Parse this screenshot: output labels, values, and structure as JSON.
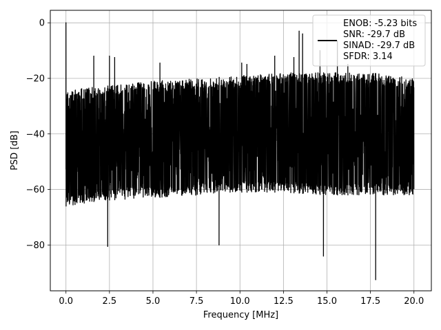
{
  "chart_data": {
    "type": "line",
    "title": "",
    "xlabel": "Frequency [MHz]",
    "ylabel": "PSD [dB]",
    "xlim": [
      -0.9,
      21.0
    ],
    "ylim": [
      -96.5,
      4.5
    ],
    "grid": true,
    "xticks": [
      0.0,
      2.5,
      5.0,
      7.5,
      10.0,
      12.5,
      15.0,
      17.5,
      20.0
    ],
    "xtick_labels": [
      "0.0",
      "2.5",
      "5.0",
      "7.5",
      "10.0",
      "12.5",
      "15.0",
      "17.5",
      "20.0"
    ],
    "yticks": [
      0,
      -20,
      -40,
      -60,
      -80
    ],
    "ytick_labels": [
      "0",
      "−20",
      "−40",
      "−60",
      "−80"
    ],
    "legend_position": "top-right",
    "series": [
      {
        "legend_lines": [
          "ENOB: -5.23 bits",
          "SNR: -29.7 dB",
          "SINAD: -29.7 dB",
          "SFDR: 3.14"
        ],
        "color": "#000000",
        "x_range": [
          0.0,
          20.0
        ],
        "description_of_values": "dense noise floor oscillating roughly between -65 and -22 dB with a peak at 0 MHz reaching 0 dB",
        "peaks": [
          {
            "x": 0.0,
            "y": 0.0
          },
          {
            "x": 1.6,
            "y": -12.0
          },
          {
            "x": 2.5,
            "y": -12.0
          },
          {
            "x": 2.8,
            "y": -12.5
          },
          {
            "x": 5.4,
            "y": -14.5
          },
          {
            "x": 10.1,
            "y": -14.5
          },
          {
            "x": 10.4,
            "y": -15.0
          },
          {
            "x": 12.0,
            "y": -12.0
          },
          {
            "x": 13.1,
            "y": -12.5
          },
          {
            "x": 13.4,
            "y": -3.0
          },
          {
            "x": 13.6,
            "y": -4.0
          },
          {
            "x": 14.6,
            "y": -10.0
          },
          {
            "x": 15.6,
            "y": -6.5
          },
          {
            "x": 16.2,
            "y": -15.0
          }
        ],
        "troughs": [
          {
            "x": 2.4,
            "y": -80.5
          },
          {
            "x": 8.8,
            "y": -80.0
          },
          {
            "x": 14.8,
            "y": -84.0
          },
          {
            "x": 17.8,
            "y": -92.5
          }
        ],
        "upper_envelope": [
          [
            0.0,
            -24
          ],
          [
            2.0,
            -23
          ],
          [
            5.0,
            -21
          ],
          [
            8.0,
            -20
          ],
          [
            10.0,
            -19
          ],
          [
            12.5,
            -18
          ],
          [
            15.0,
            -18
          ],
          [
            17.5,
            -18
          ],
          [
            20.0,
            -20
          ]
        ],
        "lower_envelope": [
          [
            0.0,
            -66
          ],
          [
            2.0,
            -64
          ],
          [
            5.0,
            -63
          ],
          [
            8.0,
            -62
          ],
          [
            10.0,
            -61
          ],
          [
            12.5,
            -61
          ],
          [
            15.0,
            -62
          ],
          [
            17.5,
            -62
          ],
          [
            20.0,
            -62
          ]
        ]
      }
    ]
  }
}
